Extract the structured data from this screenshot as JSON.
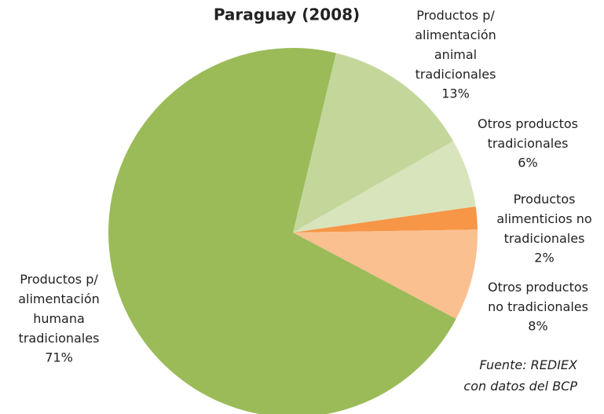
{
  "chart_data": {
    "type": "pie",
    "title": "Paraguay (2008)",
    "categories": [
      "Productos p/\nalimentación\nanimal\ntradicionales",
      "Otros productos\ntradicionales",
      "Productos\nalimenticios no\ntradicionales",
      "Otros productos\nno tradicionales",
      "Productos p/\nalimentación\nhumana\ntradicionales"
    ],
    "values": [
      13,
      6,
      2,
      8,
      71
    ],
    "value_labels": [
      "13%",
      "6%",
      "2%",
      "8%",
      "71%"
    ],
    "colors": [
      "#c4d79b",
      "#d8e4bc",
      "#f79646",
      "#fac090",
      "#9bbb59"
    ],
    "note": "Fuente: REDIEX\ncon datos del BCP"
  }
}
